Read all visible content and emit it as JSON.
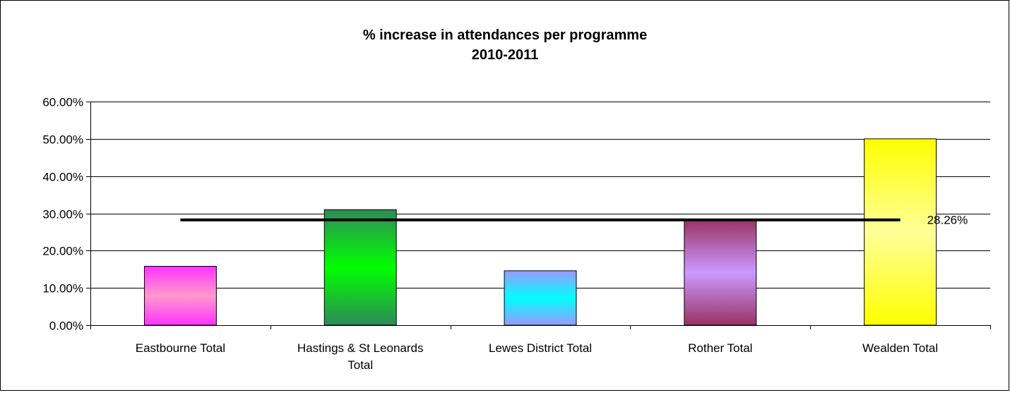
{
  "chart_data": {
    "type": "bar",
    "title_lines": [
      "% increase in attendances per programme",
      "2010-2011"
    ],
    "categories": [
      [
        "Eastbourne Total"
      ],
      [
        "Hastings & St Leonards",
        "Total"
      ],
      [
        "Lewes District Total"
      ],
      [
        "Rother Total"
      ],
      [
        "Wealden Total"
      ]
    ],
    "values": [
      15.8,
      31.0,
      14.6,
      28.3,
      50.0
    ],
    "ylim": [
      0,
      60
    ],
    "yticks": [
      0,
      10,
      20,
      30,
      40,
      50,
      60
    ],
    "ytick_labels": [
      "0.00%",
      "10.00%",
      "20.00%",
      "30.00%",
      "40.00%",
      "50.00%",
      "60.00%"
    ],
    "grid": true,
    "average_line": {
      "value": 28.26,
      "label": "28.26%"
    },
    "bar_gradients": [
      [
        "#ff33ff",
        "#ff99cc",
        "#ff33ff"
      ],
      [
        "#2e8b57",
        "#00ff00",
        "#2e8b57"
      ],
      [
        "#9999ff",
        "#00ffff",
        "#9999ff"
      ],
      [
        "#993366",
        "#cc99ff",
        "#993366"
      ],
      [
        "#ffff00",
        "#ffff99",
        "#ffff00"
      ]
    ],
    "colors": {
      "gridline": "#000000",
      "average_line": "#000000",
      "bar_border": "#000000"
    }
  }
}
